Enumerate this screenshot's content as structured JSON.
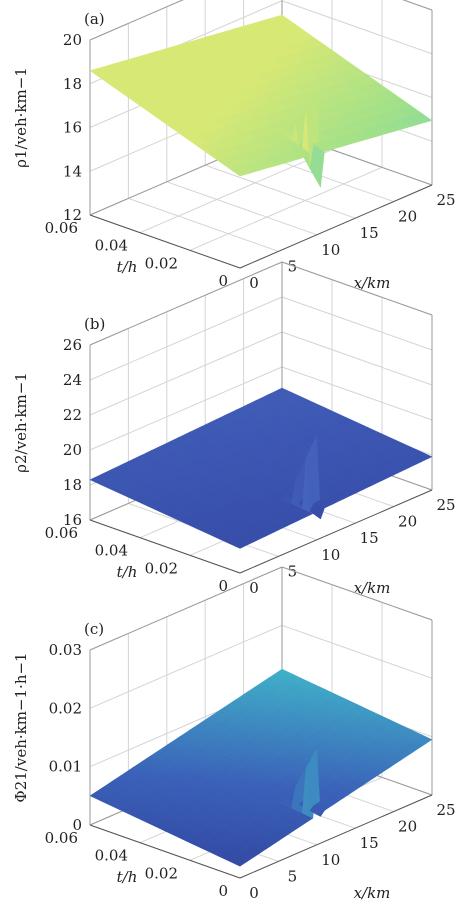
{
  "chart_data": [
    {
      "type": "surface",
      "panel_label": "(a)",
      "zlabel": "ρ1/veh·km−1",
      "xlabel": "x/km",
      "ylabel": "t/h",
      "xlim": [
        0,
        25
      ],
      "ylim": [
        0,
        0.06
      ],
      "zlim": [
        12,
        20
      ],
      "x_ticks": [
        "0",
        "5",
        "10",
        "15",
        "20",
        "25"
      ],
      "y_ticks": [
        "0",
        "0.02",
        "0.04",
        "0.06"
      ],
      "z_ticks": [
        "12",
        "14",
        "16",
        "18",
        "20"
      ],
      "grid": true,
      "colormap": [
        "#3f8fe0",
        "#62cccf",
        "#9ee08a",
        "#d8e874"
      ],
      "surface": {
        "base_x0": 16.2,
        "slope_x": -0.05,
        "slope_t": 40,
        "spike_x": 10,
        "spike_peak": 18.8,
        "spike_dip": 12.6
      }
    },
    {
      "type": "surface",
      "panel_label": "(b)",
      "zlabel": "ρ2/veh·km−1",
      "xlabel": "x/km",
      "ylabel": "t/h",
      "xlim": [
        0,
        25
      ],
      "ylim": [
        0,
        0.06
      ],
      "zlim": [
        16,
        26
      ],
      "x_ticks": [
        "0",
        "5",
        "10",
        "15",
        "20",
        "25"
      ],
      "y_ticks": [
        "0",
        "0.02",
        "0.04",
        "0.06"
      ],
      "z_ticks": [
        "16",
        "18",
        "20",
        "22",
        "24",
        "26"
      ],
      "grid": true,
      "colormap": [
        "#2f3f9a",
        "#3a54b0",
        "#4a6cc4",
        "#6fb4d8"
      ],
      "surface": {
        "base_x0": 17.4,
        "slope_x": 0.02,
        "slope_t": 15,
        "spike_x": 10,
        "spike_peak": 22.2,
        "spike_dip": 16.6
      }
    },
    {
      "type": "surface",
      "panel_label": "(c)",
      "zlabel": "Φ21/veh·km−1·h−1",
      "xlabel": "x/km",
      "ylabel": "t/h",
      "xlim": [
        0,
        25
      ],
      "ylim": [
        0,
        0.06
      ],
      "zlim": [
        0,
        0.03
      ],
      "x_ticks": [
        "0",
        "5",
        "10",
        "15",
        "20",
        "25"
      ],
      "y_ticks": [
        "0",
        "0.02",
        "0.04",
        "0.06"
      ],
      "z_ticks": [
        "0",
        "0.01",
        "0.02",
        "0.03"
      ],
      "grid": true,
      "colormap": [
        "#2f3f9a",
        "#3a60b8",
        "#3fb0c8",
        "#c8e04a"
      ],
      "surface": {
        "base_x0": 0.002,
        "slope_x": 0.0003,
        "slope_t": 0.05,
        "spike_x": 10,
        "spike_peak": 0.017,
        "spike_dip": 0.004
      }
    }
  ]
}
